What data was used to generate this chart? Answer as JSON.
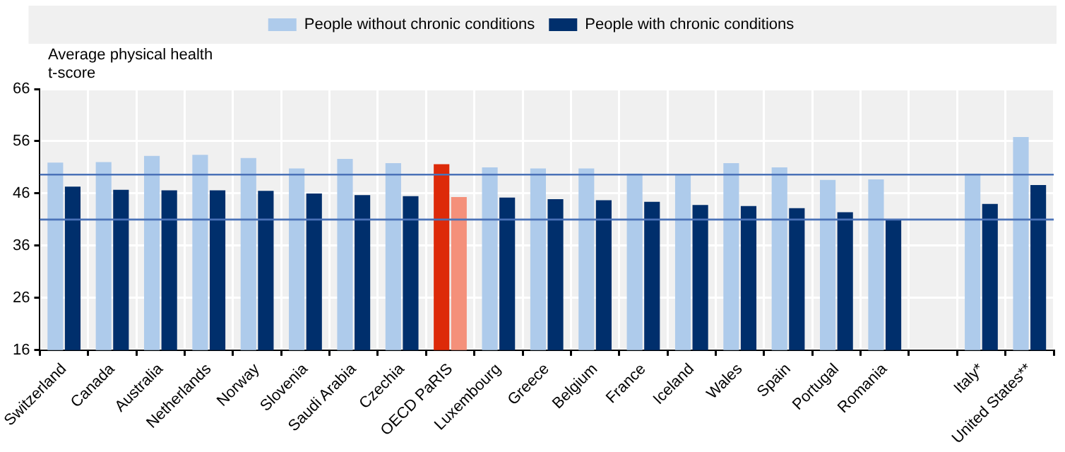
{
  "chart_data": {
    "type": "bar",
    "ylabel": "Average physical health t-score",
    "categories": [
      "Switzerland",
      "Canada",
      "Australia",
      "Netherlands",
      "Norway",
      "Slovenia",
      "Saudi Arabia",
      "Czechia",
      "OECD PaRIS",
      "Luxembourg",
      "Greece",
      "Belgium",
      "France",
      "Iceland",
      "Wales",
      "Spain",
      "Portugal",
      "Romania",
      null,
      "Italy*",
      "United States**"
    ],
    "series": [
      {
        "name": "People without chronic conditions",
        "color": "#aecbeb",
        "colors": [
          "#aecbeb",
          "#aecbeb",
          "#aecbeb",
          "#aecbeb",
          "#aecbeb",
          "#aecbeb",
          "#aecbeb",
          "#aecbeb",
          "#dd2a09",
          "#aecbeb",
          "#aecbeb",
          "#aecbeb",
          "#aecbeb",
          "#aecbeb",
          "#aecbeb",
          "#aecbeb",
          "#aecbeb",
          "#aecbeb",
          "#aecbeb",
          "#aecbeb",
          "#aecbeb"
        ],
        "values": [
          51.9,
          52.0,
          53.2,
          53.4,
          52.8,
          50.8,
          52.6,
          51.8,
          51.6,
          51.0,
          50.8,
          50.8,
          49.8,
          49.5,
          51.8,
          51.0,
          48.6,
          48.7,
          null,
          49.8,
          56.8
        ]
      },
      {
        "name": "People with chronic conditions",
        "color": "#002f6c",
        "colors": [
          "#002f6c",
          "#002f6c",
          "#002f6c",
          "#002f6c",
          "#002f6c",
          "#002f6c",
          "#002f6c",
          "#002f6c",
          "#f4907a",
          "#002f6c",
          "#002f6c",
          "#002f6c",
          "#002f6c",
          "#002f6c",
          "#002f6c",
          "#002f6c",
          "#002f6c",
          "#002f6c",
          "#002f6c",
          "#002f6c",
          "#002f6c"
        ],
        "values": [
          47.3,
          46.7,
          46.6,
          46.6,
          46.5,
          46.0,
          45.7,
          45.5,
          45.3,
          45.2,
          44.9,
          44.7,
          44.4,
          43.8,
          43.6,
          43.2,
          42.4,
          41.0,
          null,
          44.0,
          47.6
        ]
      }
    ],
    "ylim": [
      16,
      66
    ],
    "yticks": [
      16,
      26,
      36,
      46,
      56,
      66
    ],
    "grid": true,
    "legend": "top",
    "ref_lines": [
      {
        "axis": "y",
        "value": 49.6,
        "color": "#4a72b8"
      },
      {
        "axis": "y",
        "value": 41.0,
        "color": "#4a72b8"
      }
    ]
  }
}
